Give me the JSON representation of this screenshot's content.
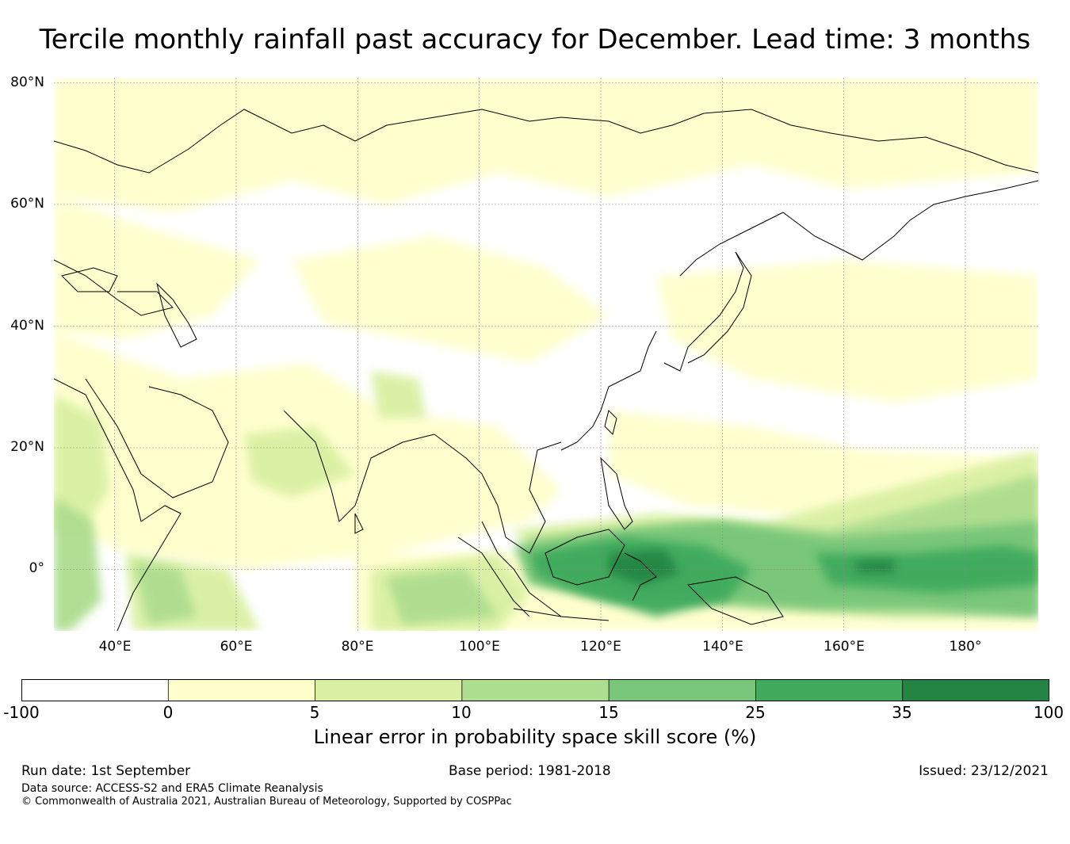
{
  "title": "Tercile monthly rainfall past accuracy for December. Lead time: 3 months",
  "map": {
    "lat_labels": [
      "80°N",
      "60°N",
      "40°N",
      "20°N",
      "0°"
    ],
    "lon_labels": [
      "40°E",
      "60°E",
      "80°E",
      "100°E",
      "120°E",
      "140°E",
      "160°E",
      "180°"
    ],
    "lon_range": [
      30,
      192
    ],
    "lat_range": [
      -10,
      81
    ],
    "colors": {
      "land_outline": "#000000",
      "grid": "#888888"
    }
  },
  "colorbar": {
    "ticks": [
      "-100",
      "0",
      "5",
      "10",
      "15",
      "25",
      "35",
      "100"
    ],
    "colors": [
      "#ffffff",
      "#ffffcc",
      "#d9f0a3",
      "#addd8e",
      "#78c679",
      "#41ab5d",
      "#238443"
    ],
    "label": "Linear error in probability space skill score (%)"
  },
  "footer": {
    "run_date": "Run date: 1st September",
    "base_period": "Base period: 1981-2018",
    "issued": "Issued: 23/12/2021",
    "data_source": "Data source: ACCESS-S2 and ERA5 Climate Reanalysis",
    "copyright": "© Commonwealth of Australia 2021, Australian Bureau of Meteorology, Supported by COSPPac"
  }
}
